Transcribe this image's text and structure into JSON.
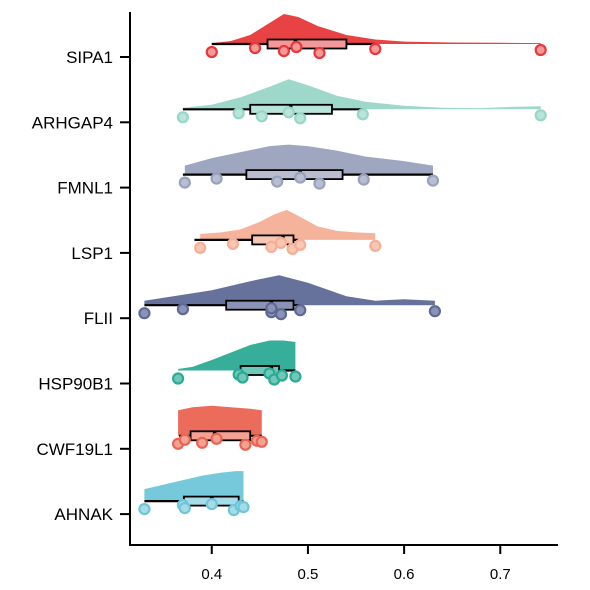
{
  "chart_data": {
    "type": "raincloud",
    "title": "",
    "xlabel": "",
    "ylabel": "",
    "xlim": [
      0.315,
      0.76
    ],
    "xticks": [
      0.4,
      0.5,
      0.6,
      0.7
    ],
    "xtick_labels": [
      "0.4",
      "0.5",
      "0.6",
      "0.7"
    ],
    "grid": false,
    "legend": "none",
    "categories": [
      {
        "name": "SIPA1",
        "color": "#E8383A",
        "light": "#F5989A",
        "points": [
          0.4,
          0.445,
          0.475,
          0.488,
          0.512,
          0.57,
          0.742
        ],
        "box": {
          "min": 0.4,
          "q1": 0.458,
          "median": 0.487,
          "q3": 0.54,
          "max": 0.57
        },
        "violin": [
          [
            0.4,
            0.03
          ],
          [
            0.42,
            0.1
          ],
          [
            0.44,
            0.3
          ],
          [
            0.46,
            0.7
          ],
          [
            0.475,
            1.0
          ],
          [
            0.49,
            0.9
          ],
          [
            0.51,
            0.6
          ],
          [
            0.54,
            0.3
          ],
          [
            0.57,
            0.15
          ],
          [
            0.6,
            0.08
          ],
          [
            0.65,
            0.05
          ],
          [
            0.7,
            0.04
          ],
          [
            0.742,
            0.03
          ]
        ]
      },
      {
        "name": "ARHGAP4",
        "color": "#98D6C7",
        "light": "#B8E4D9",
        "points": [
          0.37,
          0.428,
          0.452,
          0.48,
          0.492,
          0.557,
          0.742
        ],
        "box": {
          "min": 0.37,
          "q1": 0.44,
          "median": 0.482,
          "q3": 0.525,
          "max": 0.557
        },
        "violin": [
          [
            0.37,
            0.05
          ],
          [
            0.4,
            0.15
          ],
          [
            0.43,
            0.4
          ],
          [
            0.46,
            0.75
          ],
          [
            0.48,
            1.0
          ],
          [
            0.5,
            0.8
          ],
          [
            0.53,
            0.45
          ],
          [
            0.56,
            0.25
          ],
          [
            0.6,
            0.12
          ],
          [
            0.64,
            0.05
          ],
          [
            0.68,
            0.04
          ],
          [
            0.71,
            0.08
          ],
          [
            0.742,
            0.1
          ]
        ]
      },
      {
        "name": "FMNL1",
        "color": "#9AA1BC",
        "light": "#B8BDD2",
        "points": [
          0.372,
          0.405,
          0.468,
          0.492,
          0.512,
          0.558,
          0.63
        ],
        "box": {
          "min": 0.37,
          "q1": 0.436,
          "median": 0.492,
          "q3": 0.536,
          "max": 0.63
        },
        "violin": [
          [
            0.372,
            0.3
          ],
          [
            0.4,
            0.55
          ],
          [
            0.43,
            0.75
          ],
          [
            0.46,
            0.95
          ],
          [
            0.48,
            1.0
          ],
          [
            0.5,
            0.95
          ],
          [
            0.53,
            0.8
          ],
          [
            0.56,
            0.6
          ],
          [
            0.6,
            0.45
          ],
          [
            0.63,
            0.3
          ]
        ]
      },
      {
        "name": "LSP1",
        "color": "#F4AF96",
        "light": "#F8C7B4",
        "points": [
          0.388,
          0.422,
          0.462,
          0.472,
          0.484,
          0.492,
          0.57
        ],
        "box": {
          "min": 0.382,
          "q1": 0.442,
          "median": 0.474,
          "q3": 0.485,
          "max": 0.49
        },
        "violin": [
          [
            0.388,
            0.2
          ],
          [
            0.41,
            0.25
          ],
          [
            0.43,
            0.35
          ],
          [
            0.45,
            0.6
          ],
          [
            0.465,
            0.85
          ],
          [
            0.478,
            1.0
          ],
          [
            0.49,
            0.8
          ],
          [
            0.51,
            0.45
          ],
          [
            0.53,
            0.3
          ],
          [
            0.55,
            0.25
          ],
          [
            0.57,
            0.22
          ]
        ]
      },
      {
        "name": "FLII",
        "color": "#5E6A96",
        "light": "#8A93B6",
        "points": [
          0.33,
          0.37,
          0.462,
          0.462,
          0.472,
          0.492,
          0.632
        ],
        "box": {
          "min": 0.33,
          "q1": 0.415,
          "median": 0.462,
          "q3": 0.485,
          "max": 0.492
        },
        "violin": [
          [
            0.33,
            0.15
          ],
          [
            0.36,
            0.3
          ],
          [
            0.4,
            0.5
          ],
          [
            0.44,
            0.8
          ],
          [
            0.47,
            1.0
          ],
          [
            0.5,
            0.75
          ],
          [
            0.54,
            0.3
          ],
          [
            0.57,
            0.15
          ],
          [
            0.6,
            0.2
          ],
          [
            0.632,
            0.15
          ]
        ]
      },
      {
        "name": "HSP90B1",
        "color": "#2BAA94",
        "light": "#6FC9B8",
        "points": [
          0.365,
          0.428,
          0.432,
          0.46,
          0.465,
          0.473,
          0.487
        ],
        "box": {
          "min": 0.428,
          "q1": 0.43,
          "median": 0.462,
          "q3": 0.47,
          "max": 0.487
        },
        "violin": [
          [
            0.365,
            0.05
          ],
          [
            0.38,
            0.12
          ],
          [
            0.4,
            0.35
          ],
          [
            0.42,
            0.6
          ],
          [
            0.44,
            0.85
          ],
          [
            0.46,
            1.0
          ],
          [
            0.475,
            1.0
          ],
          [
            0.487,
            0.95
          ]
        ]
      },
      {
        "name": "CWF19L1",
        "color": "#EA6452",
        "light": "#F4A193",
        "points": [
          0.365,
          0.372,
          0.39,
          0.405,
          0.435,
          0.447,
          0.452
        ],
        "box": {
          "min": 0.366,
          "q1": 0.378,
          "median": 0.403,
          "q3": 0.44,
          "max": 0.452
        },
        "violin": [
          [
            0.365,
            0.85
          ],
          [
            0.38,
            0.95
          ],
          [
            0.4,
            1.0
          ],
          [
            0.42,
            0.95
          ],
          [
            0.44,
            0.9
          ],
          [
            0.452,
            0.85
          ]
        ]
      },
      {
        "name": "AHNAK",
        "color": "#6FC6D8",
        "light": "#A6DCE8",
        "points": [
          0.33,
          0.37,
          0.372,
          0.4,
          0.423,
          0.43,
          0.433
        ],
        "box": {
          "min": 0.33,
          "q1": 0.371,
          "median": 0.4,
          "q3": 0.428,
          "max": 0.433
        },
        "violin": [
          [
            0.33,
            0.4
          ],
          [
            0.35,
            0.55
          ],
          [
            0.37,
            0.7
          ],
          [
            0.39,
            0.85
          ],
          [
            0.41,
            0.95
          ],
          [
            0.425,
            1.0
          ],
          [
            0.433,
            1.0
          ]
        ]
      }
    ]
  }
}
